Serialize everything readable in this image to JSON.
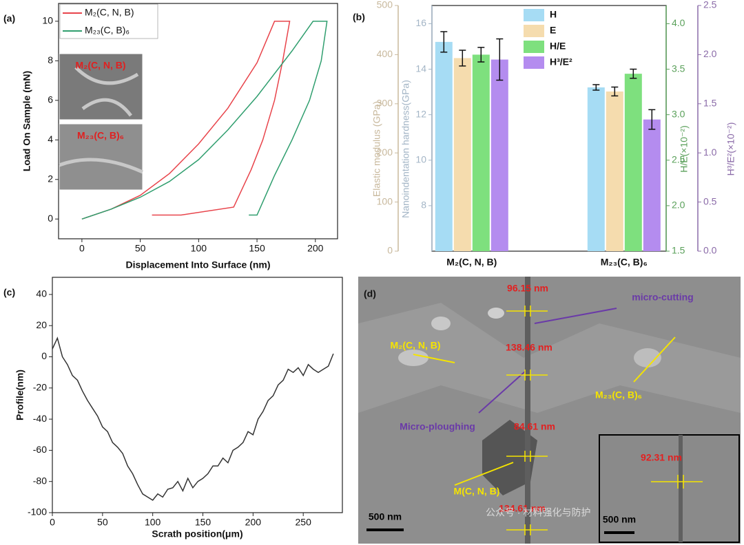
{
  "chart_data": [
    {
      "type": "line",
      "label": "(a)",
      "xlabel": "Displacement Into Surface (nm)",
      "ylabel": "Load On Sample (mN)",
      "xlim": [
        -20,
        219
      ],
      "ylim": [
        -1,
        10.9
      ],
      "xticks": [
        0,
        50,
        100,
        150,
        200
      ],
      "yticks": [
        0,
        2,
        4,
        6,
        8,
        10
      ],
      "legend": "upper left",
      "series": [
        {
          "name": "M₂(C, N, B)",
          "color": "#e8434a",
          "x": [
            0,
            25,
            50,
            75,
            100,
            125,
            150,
            165,
            178,
            172,
            165,
            155,
            145,
            130,
            85,
            60
          ],
          "y": [
            0,
            0.5,
            1.2,
            2.3,
            3.8,
            5.6,
            7.9,
            10.0,
            10.0,
            8,
            6,
            4,
            2.5,
            0.6,
            0.2,
            0.2
          ]
        },
        {
          "name": "M₂₃(C, B)₆",
          "color": "#2f9e6e",
          "x": [
            0,
            25,
            50,
            75,
            100,
            125,
            150,
            180,
            198,
            210,
            205,
            195,
            180,
            165,
            150,
            143
          ],
          "y": [
            0,
            0.5,
            1.1,
            1.9,
            3.0,
            4.5,
            6.2,
            8.5,
            10.0,
            10.0,
            8,
            6,
            4,
            2.2,
            0.2,
            0.2
          ]
        }
      ],
      "insets": [
        "M₂(C, N, B)",
        "M₂₃(C, B)₆"
      ]
    },
    {
      "type": "bar",
      "label": "(b)",
      "categories": [
        "M₂(C, N, B)",
        "M₂₃(C, B)₆"
      ],
      "axes": [
        {
          "label": "Elastic modulus (GPa)",
          "color": "#c8b89c",
          "lim": [
            0,
            500
          ],
          "ticks": [
            0,
            100,
            200,
            300,
            400,
            500
          ]
        },
        {
          "label": "Nanoindentation hardness(GPa)",
          "color": "#a3b5c6",
          "lim": [
            6,
            16.8
          ],
          "ticks": [
            8,
            10,
            12,
            14,
            16
          ]
        },
        {
          "label": "H/E(×10⁻²)",
          "color": "#5aa05a",
          "lim": [
            1.5,
            4.2
          ],
          "ticks": [
            1.5,
            {
              "value": 2,
              "label": "2.0"
            },
            2.5,
            {
              "value": 3,
              "label": "3.0"
            },
            3.5,
            {
              "value": 4,
              "label": "4.0"
            }
          ]
        },
        {
          "label": "H³/E²(×10⁻²)",
          "color": "#8a6aa8",
          "lim": [
            0,
            2.5
          ],
          "ticks": [
            {
              "value": 0,
              "label": "0.0"
            },
            0.5,
            {
              "value": 1,
              "label": "1.0"
            },
            1.5,
            {
              "value": 2,
              "label": "2.0"
            },
            2.5
          ]
        }
      ],
      "series": [
        {
          "name": "H",
          "color": "#a6dcf4",
          "axis": 1,
          "values": [
            15.2,
            13.2
          ],
          "errors": [
            0.45,
            0.12
          ]
        },
        {
          "name": "E",
          "color": "#f5dcae",
          "axis": 0,
          "values": [
            393,
            325
          ],
          "errors": [
            16,
            9
          ]
        },
        {
          "name": "H/E",
          "color": "#7ee07e",
          "axis": 2,
          "values": [
            3.66,
            3.45
          ],
          "errors": [
            0.08,
            0.05
          ]
        },
        {
          "name": "H³/E²",
          "color": "#b48cef",
          "axis": 3,
          "values": [
            1.95,
            1.34
          ],
          "errors": [
            0.21,
            0.1
          ]
        }
      ]
    },
    {
      "type": "line",
      "label": "(c)",
      "xlabel": "Scrath position(μm)",
      "ylabel": "Profile(nm)",
      "xlim": [
        0,
        289
      ],
      "ylim": [
        -100,
        51
      ],
      "xticks": [
        0,
        50,
        100,
        150,
        200,
        250
      ],
      "yticks": [
        -100,
        -80,
        -60,
        -40,
        -20,
        0,
        20,
        40
      ],
      "series": [
        {
          "color": "#333333",
          "x": [
            0,
            5,
            10,
            15,
            20,
            25,
            30,
            35,
            40,
            45,
            50,
            55,
            60,
            65,
            70,
            75,
            80,
            85,
            90,
            95,
            100,
            105,
            110,
            115,
            120,
            125,
            130,
            135,
            140,
            145,
            150,
            155,
            160,
            165,
            170,
            175,
            180,
            185,
            190,
            195,
            200,
            205,
            210,
            215,
            220,
            225,
            230,
            235,
            240,
            245,
            250,
            255,
            260,
            265,
            270,
            275,
            280
          ],
          "y": [
            5,
            12,
            0,
            -5,
            -12,
            -15,
            -22,
            -28,
            -33,
            -38,
            -45,
            -48,
            -55,
            -58,
            -62,
            -70,
            -75,
            -82,
            -88,
            -90,
            -92,
            -88,
            -90,
            -85,
            -84,
            -80,
            -86,
            -78,
            -84,
            -80,
            -78,
            -75,
            -70,
            -70,
            -65,
            -68,
            -60,
            -58,
            -55,
            -48,
            -50,
            -40,
            -35,
            -28,
            -25,
            -18,
            -15,
            -8,
            -10,
            -7,
            -12,
            -5,
            -8,
            -10,
            -8,
            -6,
            2
          ]
        }
      ]
    }
  ],
  "image_panel": {
    "label": "(d)",
    "annotations": [
      "96.15 nm",
      "micro-cutting",
      "M₂(C, N, B)",
      "138.46 nm",
      "M₂₃(C, B)₆",
      "Micro-ploughing",
      "84.61 nm",
      "M(C, N, B)",
      "134.61 nm",
      "92.31 nm"
    ],
    "scale_bars": [
      "500 nm",
      "500 nm"
    ],
    "watermark": "公众号 · 材料强化与防护"
  }
}
